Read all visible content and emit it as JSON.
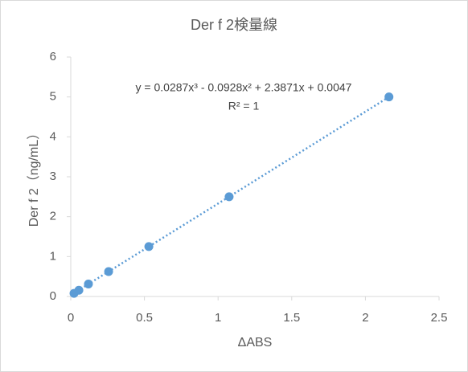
{
  "chart_data": {
    "type": "scatter",
    "title": "Der f 2検量線",
    "x_label": "ΔABS",
    "y_label": "Der f 2（ng/mL）",
    "series": [
      {
        "name": "Der f 2",
        "color": "#5b9bd5",
        "x": [
          0.022,
          0.055,
          0.12,
          0.257,
          0.53,
          1.075,
          2.16
        ],
        "values": [
          0.078,
          0.156,
          0.3125,
          0.625,
          1.25,
          2.5,
          5
        ]
      }
    ],
    "trendline": {
      "equation": "y = 0.0287x³ - 0.0928x² + 2.3871x + 0.0047",
      "r_squared": "R² = 1",
      "style": "dotted"
    },
    "xlim": [
      0,
      2.5
    ],
    "xticks": [
      0,
      0.5,
      1,
      1.5,
      2,
      2.5
    ],
    "ylim": [
      0,
      6
    ],
    "yticks": [
      0,
      1,
      2,
      3,
      4,
      5,
      6
    ],
    "grid": false
  }
}
